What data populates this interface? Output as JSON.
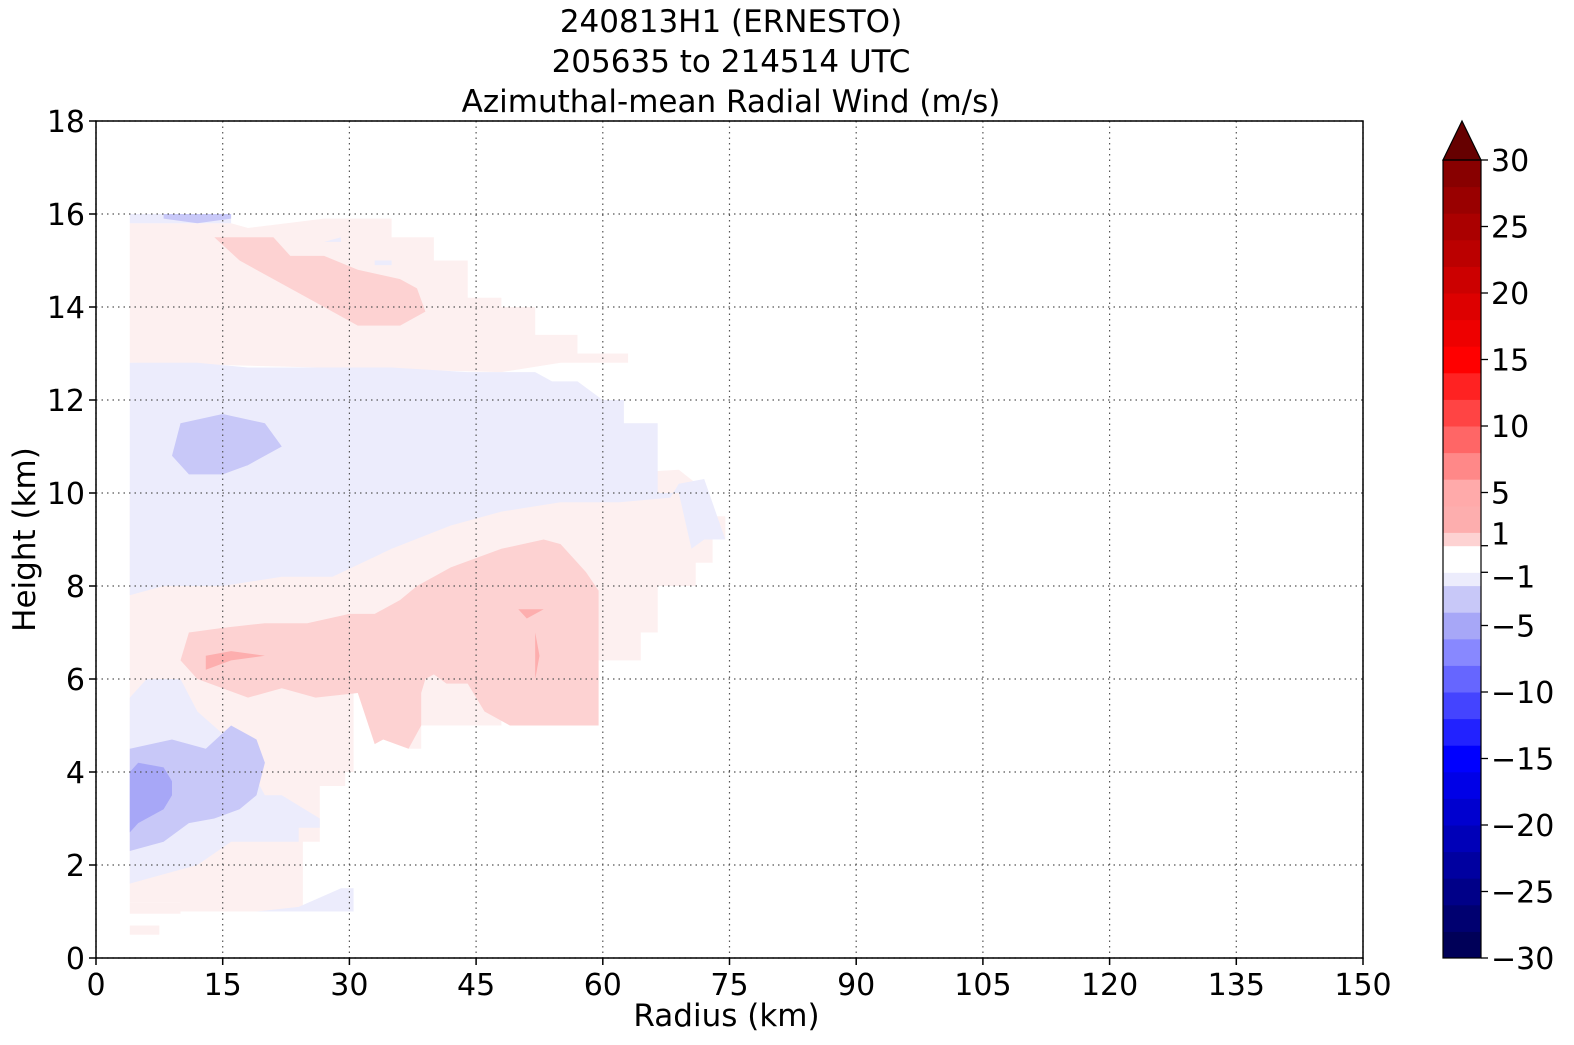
{
  "chart_data": {
    "type": "heatmap",
    "subtype": "filled-contour",
    "title_lines": [
      "240813H1 (ERNESTO)",
      "205635 to 214514 UTC",
      "Azimuthal-mean Radial Wind (m/s)"
    ],
    "xlabel": "Radius (km)",
    "ylabel": "Height (km)",
    "xlim": [
      0,
      150
    ],
    "ylim": [
      0,
      18
    ],
    "xticks": [
      "0",
      "15",
      "30",
      "45",
      "60",
      "75",
      "90",
      "105",
      "120",
      "135",
      "150"
    ],
    "yticks": [
      "0",
      "2",
      "4",
      "6",
      "8",
      "10",
      "12",
      "14",
      "16",
      "18"
    ],
    "grid": true,
    "grid_style": "dotted",
    "colorbar": {
      "range": [
        -30,
        30
      ],
      "extend": "max",
      "tick_labels": [
        "−30",
        "−25",
        "−20",
        "−15",
        "−10",
        "−5",
        "−1",
        "1",
        "5",
        "10",
        "15",
        "20",
        "25",
        "30"
      ],
      "tick_values": [
        -30,
        -25,
        -20,
        -15,
        -10,
        -5,
        -1,
        1,
        5,
        10,
        15,
        20,
        25,
        30
      ],
      "levels": [
        -30,
        -28,
        -26,
        -24,
        -22,
        -20,
        -18,
        -16,
        -14,
        -12,
        -10,
        -8,
        -6,
        -4,
        -2,
        -1,
        1,
        2,
        4,
        6,
        8,
        10,
        12,
        14,
        16,
        18,
        20,
        22,
        24,
        26,
        28,
        30
      ],
      "colormap": "seismic",
      "extend_color": "#660000"
    },
    "level_colors": {
      "-6": "#a7a7f7",
      "-4": "#c8c8f8",
      "-2": "#ececfc",
      "1": "#fdf0f0",
      "2": "#fdd2d2",
      "4": "#fdaeae"
    },
    "regions": [
      {
        "level": 1,
        "points": [
          [
            4,
            0.5
          ],
          [
            7.5,
            0.5
          ],
          [
            7.5,
            0.7
          ],
          [
            4,
            0.7
          ]
        ]
      },
      {
        "level": 1,
        "points": [
          [
            4,
            0.95
          ],
          [
            10,
            0.95
          ],
          [
            10,
            1.2
          ],
          [
            4,
            1.2
          ]
        ]
      },
      {
        "level": 1,
        "points": [
          [
            4,
            1.2
          ],
          [
            10,
            1.2
          ],
          [
            10,
            1
          ],
          [
            19,
            1
          ],
          [
            24.5,
            1
          ],
          [
            24.5,
            2.5
          ],
          [
            26.5,
            2.5
          ],
          [
            26.5,
            3.7
          ],
          [
            29.5,
            3.7
          ],
          [
            29.5,
            4
          ],
          [
            30.5,
            4
          ],
          [
            30.5,
            5.7
          ],
          [
            33,
            5.7
          ],
          [
            33,
            5
          ],
          [
            37,
            4.5
          ],
          [
            38.5,
            4.5
          ],
          [
            38.5,
            5
          ],
          [
            48,
            5
          ],
          [
            48,
            6.4
          ],
          [
            64.5,
            6.4
          ],
          [
            64.5,
            7
          ],
          [
            66.5,
            7
          ],
          [
            66.5,
            8
          ],
          [
            71,
            8
          ],
          [
            71,
            8.5
          ],
          [
            73,
            8.5
          ],
          [
            73,
            9
          ],
          [
            74.5,
            9
          ],
          [
            74.5,
            9.5
          ],
          [
            72.5,
            9.5
          ],
          [
            72.5,
            10
          ],
          [
            69,
            10.5
          ],
          [
            60,
            10.4
          ],
          [
            50,
            10.3
          ],
          [
            45,
            10.2
          ],
          [
            35,
            10.2
          ],
          [
            30,
            9.9
          ],
          [
            10,
            9.9
          ],
          [
            4,
            9.9
          ],
          [
            4,
            7.5
          ],
          [
            4,
            6
          ],
          [
            4,
            5.5
          ],
          [
            4,
            1.7
          ]
        ]
      },
      {
        "level": 1,
        "points": [
          [
            4,
            12.8
          ],
          [
            48,
            12.6
          ],
          [
            55,
            12.8
          ],
          [
            63,
            12.8
          ],
          [
            63,
            13
          ],
          [
            57,
            13
          ],
          [
            57,
            13.4
          ],
          [
            52,
            13.4
          ],
          [
            52,
            14
          ],
          [
            48,
            14
          ],
          [
            48,
            14.2
          ],
          [
            44,
            14.2
          ],
          [
            44,
            15
          ],
          [
            40,
            15
          ],
          [
            40,
            15.5
          ],
          [
            35,
            15.5
          ],
          [
            35,
            15.9
          ],
          [
            27,
            15.9
          ],
          [
            18,
            15.7
          ],
          [
            16,
            15.8
          ],
          [
            4,
            15.8
          ]
        ]
      },
      {
        "level": 2,
        "points": [
          [
            11,
            7
          ],
          [
            15,
            7.1
          ],
          [
            20,
            7.2
          ],
          [
            25,
            7.2
          ],
          [
            30,
            7.4
          ],
          [
            33,
            7.4
          ],
          [
            36,
            7.7
          ],
          [
            38,
            8
          ],
          [
            42,
            8.4
          ],
          [
            48,
            8.8
          ],
          [
            53,
            9
          ],
          [
            55,
            8.9
          ],
          [
            58,
            8.3
          ],
          [
            59.5,
            7.9
          ],
          [
            59.5,
            5
          ],
          [
            49,
            5
          ],
          [
            46,
            5.3
          ],
          [
            44,
            5.9
          ],
          [
            41.5,
            5.9
          ],
          [
            40,
            6.1
          ],
          [
            39,
            6
          ],
          [
            38.5,
            5.7
          ],
          [
            38.5,
            5
          ],
          [
            37,
            4.5
          ],
          [
            34,
            4.7
          ],
          [
            33,
            4.6
          ],
          [
            31,
            5.7
          ],
          [
            26,
            5.6
          ],
          [
            22,
            5.8
          ],
          [
            18,
            5.6
          ],
          [
            12,
            6
          ],
          [
            10,
            6.4
          ]
        ]
      },
      {
        "level": 2,
        "points": [
          [
            14,
            15.5
          ],
          [
            21,
            15.5
          ],
          [
            23,
            15.1
          ],
          [
            27,
            15.1
          ],
          [
            31,
            14.8
          ],
          [
            36,
            14.6
          ],
          [
            38,
            14.4
          ],
          [
            39,
            13.9
          ],
          [
            36,
            13.6
          ],
          [
            31,
            13.6
          ],
          [
            27,
            14
          ],
          [
            22,
            14.5
          ],
          [
            17,
            15
          ]
        ]
      },
      {
        "level": 4,
        "points": [
          [
            13,
            6.5
          ],
          [
            16,
            6.6
          ],
          [
            20,
            6.5
          ],
          [
            16,
            6.4
          ],
          [
            13,
            6.2
          ]
        ]
      },
      {
        "level": 4,
        "points": [
          [
            50,
            7.5
          ],
          [
            53,
            7.5
          ],
          [
            51,
            7.3
          ]
        ]
      },
      {
        "level": 4,
        "points": [
          [
            52,
            7
          ],
          [
            52.5,
            6.5
          ],
          [
            52,
            6
          ]
        ]
      },
      {
        "level": -2,
        "points": [
          [
            4,
            1.6
          ],
          [
            8,
            1.8
          ],
          [
            12,
            2
          ],
          [
            16,
            2.5
          ],
          [
            24,
            2.5
          ],
          [
            24,
            2.8
          ],
          [
            26.5,
            2.8
          ],
          [
            26.5,
            3
          ],
          [
            22,
            3.5
          ],
          [
            20,
            3.5
          ],
          [
            17,
            4.5
          ],
          [
            12,
            5.3
          ],
          [
            10,
            6
          ],
          [
            6,
            6
          ],
          [
            4,
            5.6
          ]
        ]
      },
      {
        "level": -2,
        "points": [
          [
            24,
            1.1
          ],
          [
            29,
            1.5
          ],
          [
            30.5,
            1.5
          ],
          [
            30.5,
            1
          ],
          [
            19,
            1
          ]
        ]
      },
      {
        "level": -2,
        "points": [
          [
            4,
            7.8
          ],
          [
            8,
            8
          ],
          [
            15,
            8
          ],
          [
            22,
            8.2
          ],
          [
            28,
            8.2
          ],
          [
            35,
            8.8
          ],
          [
            42,
            9.3
          ],
          [
            48,
            9.6
          ],
          [
            55,
            9.8
          ],
          [
            62,
            9.8
          ],
          [
            68,
            9.9
          ],
          [
            69,
            10.2
          ],
          [
            72,
            10.3
          ],
          [
            74.5,
            9
          ],
          [
            72,
            9
          ],
          [
            70.5,
            8.8
          ],
          [
            69,
            10
          ],
          [
            66.5,
            10
          ],
          [
            66.5,
            11
          ],
          [
            66.5,
            11.5
          ],
          [
            62.5,
            11.5
          ],
          [
            62.5,
            12
          ],
          [
            60,
            12
          ],
          [
            57,
            12.4
          ],
          [
            54,
            12.4
          ],
          [
            52,
            12.6
          ],
          [
            48,
            12.6
          ],
          [
            44,
            12.6
          ],
          [
            35,
            12.7
          ],
          [
            18,
            12.7
          ],
          [
            12,
            12.8
          ],
          [
            4,
            12.8
          ]
        ]
      },
      {
        "level": -2,
        "points": [
          [
            4,
            15.8
          ],
          [
            16,
            15.8
          ],
          [
            16,
            16
          ],
          [
            4,
            16
          ]
        ]
      },
      {
        "level": -2,
        "points": [
          [
            27,
            15.4
          ],
          [
            29,
            15.5
          ],
          [
            29,
            15.4
          ]
        ]
      },
      {
        "level": -2,
        "points": [
          [
            33,
            15
          ],
          [
            35,
            15
          ],
          [
            35,
            14.9
          ],
          [
            33,
            14.9
          ]
        ]
      },
      {
        "level": -4,
        "points": [
          [
            4,
            2.3
          ],
          [
            8,
            2.5
          ],
          [
            11,
            2.9
          ],
          [
            14,
            3
          ],
          [
            17,
            3.2
          ],
          [
            19,
            3.5
          ],
          [
            20,
            4.2
          ],
          [
            19,
            4.7
          ],
          [
            16,
            5
          ],
          [
            13,
            4.5
          ],
          [
            9,
            4.7
          ],
          [
            4,
            4.5
          ]
        ]
      },
      {
        "level": -4,
        "points": [
          [
            9,
            10.8
          ],
          [
            11,
            10.4
          ],
          [
            15,
            10.4
          ],
          [
            18,
            10.6
          ],
          [
            22,
            11
          ],
          [
            20,
            11.5
          ],
          [
            15,
            11.7
          ],
          [
            10,
            11.5
          ]
        ]
      },
      {
        "level": -4,
        "points": [
          [
            8,
            15.9
          ],
          [
            12,
            15.8
          ],
          [
            16,
            15.9
          ],
          [
            16,
            16
          ],
          [
            8,
            16
          ]
        ]
      },
      {
        "level": -6,
        "points": [
          [
            4,
            2.7
          ],
          [
            5,
            2.9
          ],
          [
            8,
            3.2
          ],
          [
            9,
            3.5
          ],
          [
            9,
            3.8
          ],
          [
            8,
            4.1
          ],
          [
            5,
            4.2
          ],
          [
            4,
            4
          ]
        ]
      }
    ]
  }
}
